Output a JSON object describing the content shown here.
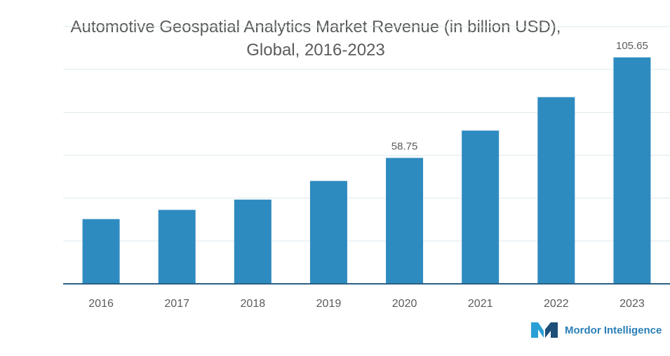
{
  "chart_data": {
    "type": "bar",
    "title": "Automotive Geospatial Analytics Market Revenue (in billion USD),",
    "subtitle": "Global, 2016-2023",
    "xlabel": "",
    "ylabel": "",
    "categories": [
      "2016",
      "2017",
      "2018",
      "2019",
      "2020",
      "2021",
      "2022",
      "2023"
    ],
    "values": [
      30.2,
      34.5,
      39.3,
      48.0,
      58.75,
      71.5,
      87.1,
      105.65
    ],
    "data_labels": [
      "",
      "",
      "",
      "",
      "58.75",
      "",
      "",
      "105.65"
    ],
    "ylim": [
      0,
      120
    ],
    "grid": true,
    "bar_color": "#2e8bc0",
    "axis_color": "#2b5f85",
    "grid_color": "#dde9ef"
  },
  "brand": {
    "name": "Mordor Intelligence",
    "logo_color": "#2a7fb6"
  }
}
